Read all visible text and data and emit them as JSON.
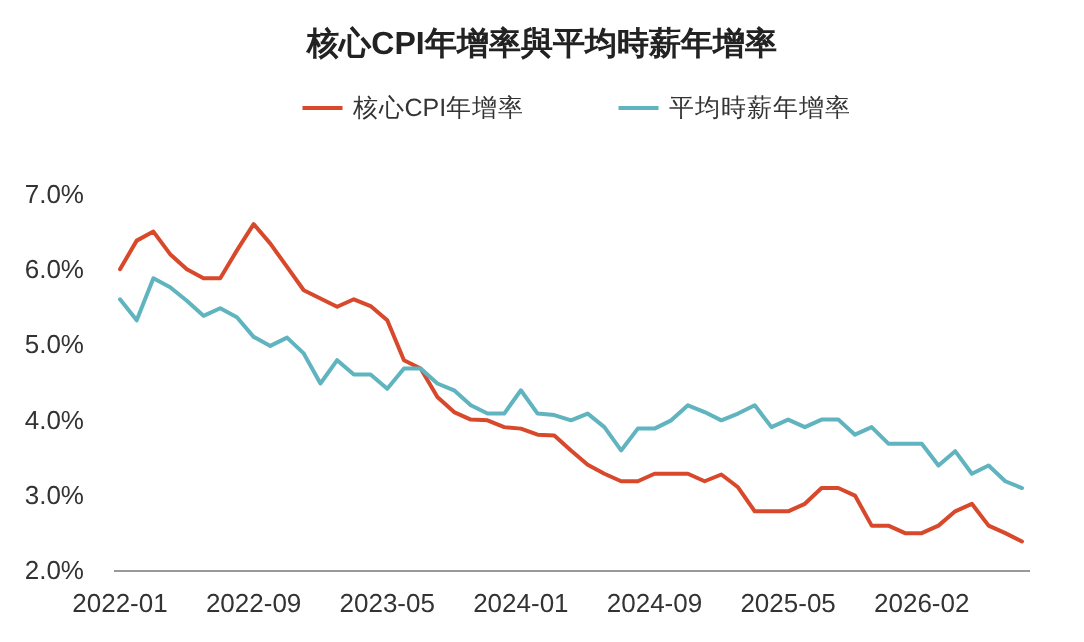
{
  "chart_data": {
    "type": "line",
    "title": "核心CPI年增率與平均時薪年增率",
    "legend": "top",
    "categories": [
      "2022-01",
      null,
      null,
      null,
      null,
      null,
      null,
      null,
      "2022-09",
      null,
      null,
      null,
      null,
      null,
      null,
      null,
      "2023-05",
      null,
      null,
      null,
      null,
      null,
      null,
      null,
      "2024-01",
      null,
      null,
      null,
      null,
      null,
      null,
      null,
      "2024-09",
      null,
      null,
      null,
      null,
      null,
      null,
      null,
      "2025-05",
      null,
      null,
      null,
      null,
      null,
      null,
      null,
      "2026-02",
      null,
      null,
      null,
      null,
      null,
      null
    ],
    "ylim": [
      2,
      7
    ],
    "yticks": [
      {
        "value": 2,
        "label": "2.0%"
      },
      {
        "value": 3,
        "label": "3.0%"
      },
      {
        "value": 4,
        "label": "4.0%"
      },
      {
        "value": 5,
        "label": "5.0%"
      },
      {
        "value": 6,
        "label": "6.0%"
      },
      {
        "value": 7,
        "label": "7.0%"
      }
    ],
    "series": [
      {
        "name": "核心CPI年增率",
        "color": "#d8482b",
        "values": [
          6.0,
          6.38,
          6.5,
          6.2,
          6.0,
          5.88,
          5.88,
          6.25,
          6.6,
          6.34,
          6.03,
          5.72,
          5.61,
          5.5,
          5.6,
          5.51,
          5.32,
          4.79,
          4.68,
          4.3,
          4.1,
          4.0,
          3.99,
          3.9,
          3.88,
          3.8,
          3.79,
          3.59,
          3.4,
          3.28,
          3.18,
          3.18,
          3.28,
          3.28,
          3.28,
          3.18,
          3.27,
          3.1,
          2.78,
          2.78,
          2.78,
          2.88,
          3.09,
          3.09,
          2.99,
          2.59,
          2.59,
          2.49,
          2.49,
          2.59,
          2.78,
          2.88,
          2.59,
          2.49,
          2.38
        ]
      },
      {
        "name": "平均時薪年增率",
        "color": "#5fb4bf",
        "values": [
          5.6,
          5.32,
          5.88,
          5.76,
          5.58,
          5.38,
          5.48,
          5.36,
          5.1,
          4.98,
          5.09,
          4.88,
          4.48,
          4.79,
          4.6,
          4.6,
          4.41,
          4.68,
          4.68,
          4.48,
          4.39,
          4.19,
          4.08,
          4.08,
          4.39,
          4.08,
          4.06,
          3.99,
          4.08,
          3.9,
          3.59,
          3.88,
          3.88,
          3.99,
          4.19,
          4.1,
          3.99,
          4.08,
          4.19,
          3.9,
          4.0,
          3.9,
          4.0,
          4.0,
          3.8,
          3.9,
          3.68,
          3.68,
          3.68,
          3.39,
          3.58,
          3.28,
          3.39,
          3.18,
          3.09
        ]
      }
    ]
  }
}
